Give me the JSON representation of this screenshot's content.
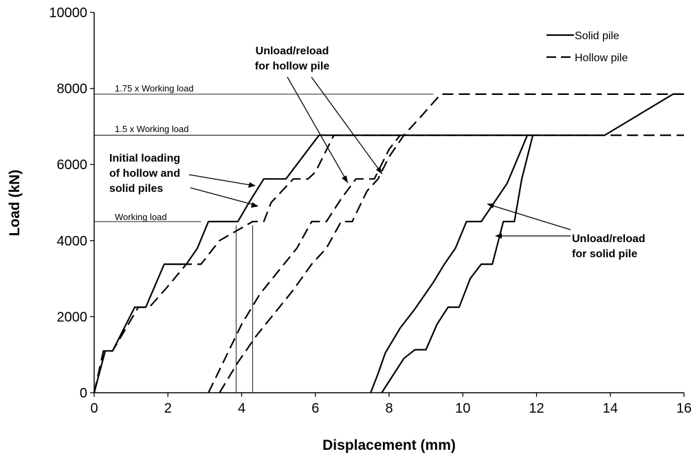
{
  "chart_data": {
    "type": "line",
    "title": "",
    "xlabel": "Displacement (mm)",
    "ylabel": "Load (kN)",
    "xlim": [
      0,
      16
    ],
    "ylim": [
      0,
      10000
    ],
    "xticks": [
      0,
      2,
      4,
      6,
      8,
      10,
      12,
      14,
      16
    ],
    "yticks": [
      0,
      2000,
      4000,
      6000,
      8000,
      10000
    ],
    "grid": false,
    "legend_position": "top-right",
    "legend": [
      {
        "label": "Solid pile",
        "style": "solid"
      },
      {
        "label": "Hollow pile",
        "style": "dashed"
      }
    ],
    "series": [
      {
        "name": "Solid pile",
        "style": "solid",
        "segments": [
          {
            "x": [
              0,
              0.3,
              0.5,
              1.1,
              1.4,
              1.9,
              2.5,
              2.8,
              3.1,
              3.9,
              4.2,
              4.6,
              5.2,
              6.1,
              8,
              10,
              12,
              13.85,
              15.7,
              16
            ],
            "y": [
              0,
              1100,
              1100,
              2250,
              2250,
              3380,
              3380,
              3800,
              4500,
              4500,
              5000,
              5620,
              5620,
              6770,
              6770,
              6770,
              6770,
              6770,
              7850,
              7850
            ]
          },
          {
            "x": [
              11.75,
              11.2,
              10.5,
              10.1,
              9.8,
              9.5,
              9.2,
              8.7,
              8.3,
              7.9,
              7.7,
              7.5
            ],
            "y": [
              6770,
              5500,
              4500,
              4500,
              3800,
              3380,
              2900,
              2200,
              1700,
              1050,
              500,
              0
            ]
          },
          {
            "x": [
              7.8,
              8.0,
              8.4,
              8.7,
              9.0,
              9.3,
              9.6,
              9.9,
              10.2,
              10.5,
              10.8,
              11.1,
              11.4,
              11.6,
              11.9
            ],
            "y": [
              0,
              300,
              900,
              1130,
              1130,
              1800,
              2250,
              2250,
              3000,
              3380,
              3380,
              4500,
              4500,
              5620,
              6770
            ]
          }
        ]
      },
      {
        "name": "Hollow pile",
        "style": "dashed",
        "segments": [
          {
            "x": [
              0,
              0.25,
              0.5,
              1.2,
              1.5,
              2.0,
              2.5,
              2.9,
              3.4,
              4.3,
              4.6,
              4.8,
              5.4,
              5.8,
              6.0,
              6.5,
              7.5,
              8,
              10,
              12,
              14,
              16
            ],
            "y": [
              0,
              1100,
              1100,
              2250,
              2250,
              2800,
              3380,
              3380,
              4000,
              4500,
              4500,
              5000,
              5620,
              5620,
              5800,
              6770,
              6770,
              6770,
              6770,
              6770,
              6770,
              6770
            ]
          },
          {
            "x": [
              3.1,
              3.5,
              4.0,
              4.5,
              5.0,
              5.5,
              5.9,
              6.3,
              6.7,
              7.1,
              7.6,
              8.0,
              8.3
            ],
            "y": [
              0,
              800,
              1800,
              2600,
              3200,
              3800,
              4500,
              4500,
              5100,
              5620,
              5620,
              6400,
              6770
            ]
          },
          {
            "x": [
              3.4,
              3.9,
              4.4,
              4.9,
              5.4,
              5.9,
              6.3,
              6.7,
              7.0,
              7.4,
              7.7,
              8.0,
              8.4,
              8.9,
              9.4,
              16
            ],
            "y": [
              0,
              800,
              1500,
              2100,
              2700,
              3380,
              3800,
              4500,
              4500,
              5300,
              5620,
              6200,
              6770,
              7300,
              7850,
              7850
            ]
          }
        ]
      }
    ],
    "reference_lines": [
      {
        "label": "1.75 x Working load",
        "y": 7850,
        "x": [
          0,
          9.2
        ]
      },
      {
        "label": "1.5 x Working load",
        "y": 6770,
        "x": [
          0,
          6.1
        ]
      },
      {
        "label": "Working load",
        "y": 4500,
        "x": [
          0,
          2.9
        ]
      }
    ],
    "vertical_markers": [
      {
        "x": 3.85,
        "y": [
          0,
          4400
        ]
      },
      {
        "x": 4.3,
        "y": [
          0,
          4400
        ]
      }
    ],
    "annotations": [
      {
        "lines": [
          "Unload/reload",
          "for hollow pile"
        ],
        "id": "hollow"
      },
      {
        "lines": [
          "Initial loading",
          "of hollow and",
          "solid piles"
        ],
        "id": "initial"
      },
      {
        "lines": [
          "Unload/reload",
          "for solid pile"
        ],
        "id": "solid"
      }
    ]
  }
}
